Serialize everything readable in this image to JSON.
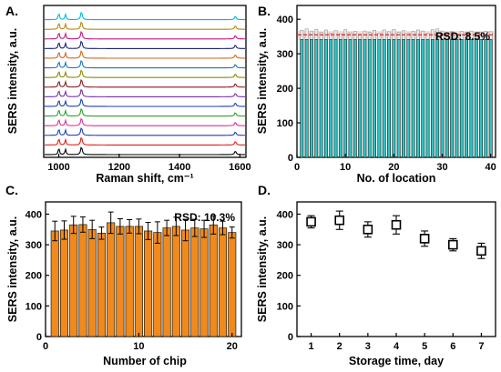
{
  "chart_data": [
    {
      "panel_label": "A.",
      "type": "line",
      "xlabel": "Raman shift, cm⁻¹",
      "ylabel": "SERS intensity, a.u.",
      "xlim": [
        950,
        1620
      ],
      "xticks": [
        1000,
        1200,
        1400,
        1600
      ],
      "peaks": [
        1000,
        1022,
        1075,
        1585
      ],
      "series": [
        {
          "color": "#000000"
        },
        {
          "color": "#e41a1c"
        },
        {
          "color": "#1f3fb4"
        },
        {
          "color": "#e0308c"
        },
        {
          "color": "#2ca02c"
        },
        {
          "color": "#1f3fb4"
        },
        {
          "color": "#7b2fa5"
        },
        {
          "color": "#8b1a1a"
        },
        {
          "color": "#8a8a00"
        },
        {
          "color": "#1f77b4"
        },
        {
          "color": "#d2691e"
        },
        {
          "color": "#1a237e"
        },
        {
          "color": "#c71585"
        },
        {
          "color": "#b8860b"
        },
        {
          "color": "#00bcd4"
        }
      ]
    },
    {
      "panel_label": "B.",
      "type": "bar",
      "xlabel": "No. of location",
      "ylabel": "SERS intensity, a.u.",
      "annotation": "RSD: 8.5%",
      "xlim": [
        0,
        41
      ],
      "ylim": [
        0,
        440
      ],
      "xticks": [
        0,
        10,
        20,
        30,
        40
      ],
      "yticks": [
        0,
        100,
        200,
        300,
        400
      ],
      "mean": 355,
      "band": [
        340,
        366
      ],
      "x": [
        1,
        2,
        3,
        4,
        5,
        6,
        7,
        8,
        9,
        10,
        11,
        12,
        13,
        14,
        15,
        16,
        17,
        18,
        19,
        20,
        21,
        22,
        23,
        24,
        25,
        26,
        27,
        28,
        29,
        30,
        31,
        32,
        33,
        34,
        35,
        36,
        37,
        38,
        39,
        40
      ],
      "values": [
        341,
        341,
        341,
        341,
        341,
        341,
        341,
        341,
        341,
        341,
        341,
        341,
        341,
        341,
        341,
        341,
        341,
        341,
        341,
        341,
        341,
        341,
        341,
        341,
        341,
        341,
        341,
        341,
        341,
        341,
        341,
        341,
        341,
        341,
        341,
        341,
        341,
        341,
        341,
        341
      ],
      "tops": [
        368,
        372,
        366,
        371,
        362,
        369,
        360,
        367,
        358,
        370,
        361,
        365,
        357,
        366,
        362,
        368,
        360,
        369,
        364,
        371,
        363,
        367,
        359,
        365,
        369,
        366,
        360,
        370,
        372,
        366,
        361,
        364,
        358,
        365,
        363,
        366,
        360,
        362,
        365,
        364
      ],
      "bar_color": "#2ec4c4"
    },
    {
      "panel_label": "C.",
      "type": "bar",
      "xlabel": "Number of chip",
      "ylabel": "SERS intensity, a.u.",
      "annotation": "RSD: 10.3%",
      "xlim": [
        0,
        21
      ],
      "ylim": [
        0,
        440
      ],
      "xticks": [
        0,
        10,
        20
      ],
      "yticks": [
        0,
        100,
        200,
        300,
        400
      ],
      "x": [
        1,
        2,
        3,
        4,
        5,
        6,
        7,
        8,
        9,
        10,
        11,
        12,
        13,
        14,
        15,
        16,
        17,
        18,
        19,
        20
      ],
      "values": [
        345,
        348,
        365,
        366,
        350,
        338,
        372,
        360,
        360,
        360,
        345,
        340,
        355,
        360,
        348,
        355,
        352,
        365,
        355,
        340
      ],
      "errors": [
        32,
        30,
        28,
        25,
        30,
        20,
        35,
        25,
        22,
        24,
        28,
        35,
        25,
        30,
        35,
        28,
        28,
        30,
        22,
        18
      ],
      "bar_color": "#f08a1c"
    },
    {
      "panel_label": "D.",
      "type": "scatter",
      "xlabel": "Storage time, day",
      "ylabel": "SERS intensity, a.u.",
      "xlim": [
        0.5,
        7.5
      ],
      "ylim": [
        0,
        440
      ],
      "xticks": [
        1,
        2,
        3,
        4,
        5,
        6,
        7
      ],
      "yticks": [
        0,
        100,
        200,
        300,
        400
      ],
      "x": [
        1,
        2,
        3,
        4,
        5,
        6,
        7
      ],
      "values": [
        375,
        380,
        350,
        365,
        320,
        300,
        280
      ],
      "errors": [
        20,
        30,
        25,
        30,
        25,
        20,
        25
      ]
    }
  ]
}
